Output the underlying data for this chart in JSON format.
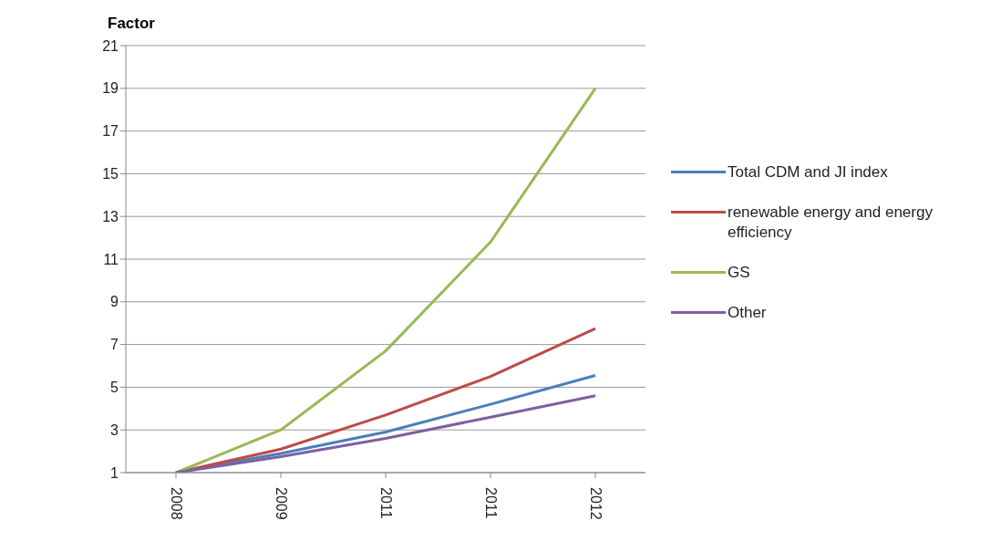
{
  "chart_data": {
    "type": "line",
    "ylabel": "Factor",
    "categories": [
      "2008",
      "2009",
      "2011",
      "2011",
      "2012"
    ],
    "series": [
      {
        "name": "Total CDM and JI index",
        "color": "#4a7ebb",
        "values": [
          1,
          1.9,
          2.9,
          4.2,
          5.55
        ]
      },
      {
        "name": "renewable energy and energy efficiency",
        "color": "#be4b48",
        "values": [
          1,
          2.1,
          3.7,
          5.5,
          7.75
        ]
      },
      {
        "name": "GS",
        "color": "#98b954",
        "values": [
          1,
          3.0,
          6.7,
          11.8,
          19.0
        ]
      },
      {
        "name": "Other",
        "color": "#7d60a0",
        "values": [
          1,
          1.75,
          2.6,
          3.6,
          4.6
        ]
      }
    ],
    "ylim": [
      1,
      21
    ],
    "yticks": [
      1,
      3,
      5,
      7,
      9,
      11,
      13,
      15,
      17,
      19,
      21
    ],
    "grid": "y",
    "legend": "right",
    "marker": "none",
    "line_style": "solid"
  }
}
